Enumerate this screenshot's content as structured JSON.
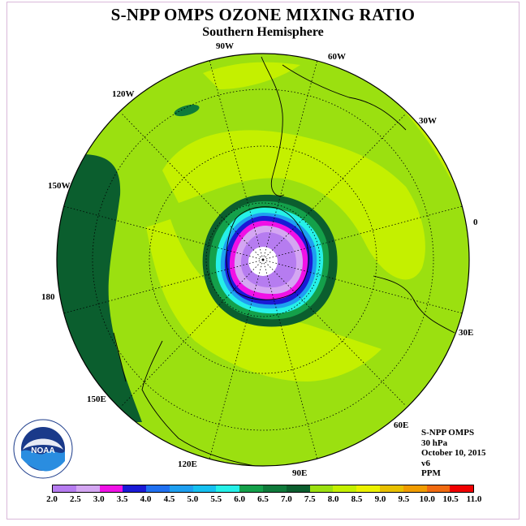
{
  "title": "S-NPP OMPS OZONE MIXING RATIO",
  "subtitle": "Southern Hemisphere",
  "info": {
    "instrument": "S-NPP OMPS",
    "level": "30 hPa",
    "date": "October 10, 2015",
    "version": "v6",
    "units": "PPM"
  },
  "longitude_labels": {
    "lon_90w": "90W",
    "lon_60w": "60W",
    "lon_120w": "120W",
    "lon_30w": "30W",
    "lon_150w": "150W",
    "lon_0": "0",
    "lon_180": "180",
    "lon_30e": "30E",
    "lon_150e": "150E",
    "lon_60e": "60E",
    "lon_120e": "120E",
    "lon_90e": "90E"
  },
  "logo_text": "NOAA",
  "colorbar": {
    "ticks": [
      "2.0",
      "2.5",
      "3.0",
      "3.5",
      "4.0",
      "4.5",
      "5.0",
      "5.5",
      "6.0",
      "6.5",
      "7.0",
      "7.5",
      "8.0",
      "8.5",
      "9.0",
      "9.5",
      "10.0",
      "10.5",
      "11.0"
    ],
    "colors": [
      "#b67cf0",
      "#d4a6f2",
      "#f011e6",
      "#1a1ad6",
      "#2070f0",
      "#1e9ff0",
      "#16c0f0",
      "#26f0e8",
      "#14a04a",
      "#0f7a3a",
      "#0b5e2e",
      "#9be010",
      "#c4f000",
      "#ecf200",
      "#e8c000",
      "#f09c00",
      "#f06a10",
      "#f00000",
      "#8a4a2a"
    ]
  },
  "map_colors": {
    "background": "#9be010",
    "light_band": "#c4f000",
    "dark_band": "#0b5e2e",
    "mid_green": "#0f7a3a",
    "green": "#14a04a"
  }
}
